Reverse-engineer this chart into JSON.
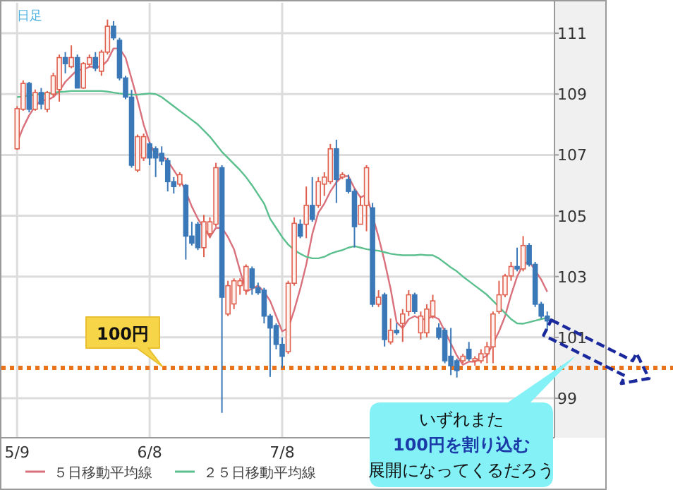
{
  "chart_data": {
    "type": "candlestick",
    "title": "日足",
    "categories": [
      "5/9",
      null,
      null,
      null,
      null,
      null,
      null,
      null,
      null,
      null,
      null,
      null,
      null,
      null,
      null,
      null,
      null,
      null,
      null,
      null,
      null,
      null,
      "6/8",
      null,
      null,
      null,
      null,
      null,
      null,
      null,
      null,
      null,
      null,
      null,
      null,
      null,
      null,
      null,
      null,
      null,
      null,
      null,
      null,
      null,
      "7/8",
      null,
      null,
      null,
      null,
      null,
      null,
      null,
      null,
      null,
      null,
      null,
      null,
      null,
      null,
      null,
      null,
      null,
      null,
      null,
      null,
      null,
      null,
      null,
      null,
      null,
      null,
      null,
      null,
      null,
      null,
      null,
      null,
      null,
      null,
      null,
      null,
      null,
      null,
      null,
      null,
      null,
      null,
      null,
      null
    ],
    "ohlc": [
      [
        107.2,
        108.6,
        107.17,
        108.52
      ],
      [
        108.5,
        109.45,
        108.45,
        109.35
      ],
      [
        109.35,
        109.4,
        108.4,
        108.5
      ],
      [
        108.5,
        109.15,
        108.45,
        109.05
      ],
      [
        109.05,
        109.2,
        108.5,
        108.67
      ],
      [
        108.5,
        109.1,
        108.4,
        109.05
      ],
      [
        109.0,
        109.7,
        108.9,
        109.6
      ],
      [
        109.15,
        110.3,
        108.75,
        110.2
      ],
      [
        110.2,
        110.38,
        109.68,
        110.0
      ],
      [
        109.9,
        110.6,
        109.85,
        110.2
      ],
      [
        110.2,
        110.3,
        109.2,
        109.2
      ],
      [
        109.2,
        110.05,
        109.17,
        110.0
      ],
      [
        109.98,
        110.3,
        109.9,
        110.2
      ],
      [
        110.2,
        110.38,
        109.75,
        109.85
      ],
      [
        109.75,
        110.45,
        109.6,
        110.38
      ],
      [
        110.38,
        111.45,
        110.3,
        111.23
      ],
      [
        111.23,
        111.4,
        110.77,
        110.85
      ],
      [
        110.77,
        110.85,
        109.45,
        109.53
      ],
      [
        109.53,
        109.6,
        108.83,
        108.9
      ],
      [
        108.9,
        109.14,
        106.58,
        106.66
      ],
      [
        106.5,
        107.67,
        106.43,
        107.6
      ],
      [
        106.9,
        107.7,
        106.8,
        107.6
      ],
      [
        107.36,
        107.43,
        106.66,
        106.9
      ],
      [
        107.2,
        107.28,
        106.27,
        106.9
      ],
      [
        107.05,
        107.28,
        106.66,
        106.8
      ],
      [
        106.81,
        106.9,
        105.8,
        106.12
      ],
      [
        106.12,
        106.27,
        105.73,
        105.96
      ],
      [
        106.04,
        106.43,
        105.96,
        106.35
      ],
      [
        106.0,
        106.04,
        103.56,
        104.33
      ],
      [
        104.33,
        104.8,
        104.02,
        104.1
      ],
      [
        104.72,
        104.8,
        103.87,
        103.95
      ],
      [
        103.95,
        105.03,
        103.64,
        104.8
      ],
      [
        104.41,
        104.95,
        104.26,
        104.8
      ],
      [
        104.72,
        106.74,
        104.64,
        106.58
      ],
      [
        106.58,
        106.66,
        98.52,
        102.32
      ],
      [
        101.77,
        102.86,
        101.7,
        102.7
      ],
      [
        102.1,
        102.94,
        101.93,
        102.86
      ],
      [
        102.7,
        102.94,
        102.4,
        102.86
      ],
      [
        102.55,
        103.4,
        102.4,
        103.33
      ],
      [
        103.25,
        103.33,
        102.4,
        102.63
      ],
      [
        102.63,
        102.8,
        102.4,
        102.47
      ],
      [
        102.55,
        102.63,
        101.46,
        101.7
      ],
      [
        101.7,
        101.77,
        99.7,
        101.31
      ],
      [
        101.39,
        101.46,
        100.61,
        100.77
      ],
      [
        100.77,
        101.0,
        99.99,
        100.38
      ],
      [
        100.53,
        102.86,
        100.46,
        102.78
      ],
      [
        102.78,
        104.95,
        102.7,
        104.75
      ],
      [
        104.72,
        104.88,
        104.26,
        104.33
      ],
      [
        104.72,
        105.96,
        104.26,
        105.34
      ],
      [
        105.34,
        106.27,
        104.8,
        104.88
      ],
      [
        105.34,
        106.27,
        105.26,
        106.12
      ],
      [
        106.04,
        106.43,
        105.65,
        106.27
      ],
      [
        106.12,
        107.36,
        106.04,
        107.2
      ],
      [
        107.2,
        107.5,
        105.42,
        106.19
      ],
      [
        106.27,
        106.43,
        106.2,
        106.35
      ],
      [
        106.19,
        106.35,
        105.73,
        105.8
      ],
      [
        105.8,
        105.88,
        103.95,
        104.64
      ],
      [
        104.72,
        105.65,
        104.72,
        105.34
      ],
      [
        105.34,
        106.66,
        104.49,
        106.58
      ],
      [
        105.26,
        105.42,
        102.0,
        102.09
      ],
      [
        102.09,
        102.55,
        102.0,
        102.32
      ],
      [
        102.4,
        102.47,
        100.7,
        100.93
      ],
      [
        100.85,
        101.62,
        100.77,
        101.23
      ],
      [
        101.23,
        101.46,
        101.08,
        101.15
      ],
      [
        101.46,
        101.93,
        100.85,
        101.77
      ],
      [
        101.85,
        102.55,
        101.7,
        102.4
      ],
      [
        102.4,
        102.47,
        101.77,
        101.85
      ],
      [
        101.15,
        101.85,
        100.93,
        101.7
      ],
      [
        101.15,
        102.09,
        101.0,
        101.93
      ],
      [
        101.7,
        102.4,
        101.62,
        102.2
      ],
      [
        101.31,
        101.46,
        100.93,
        101.0
      ],
      [
        101.23,
        101.31,
        100.15,
        100.23
      ],
      [
        100.38,
        101.31,
        99.76,
        100.07
      ],
      [
        100.23,
        100.3,
        99.68,
        99.91
      ],
      [
        100.23,
        100.46,
        100.15,
        100.38
      ],
      [
        100.61,
        100.85,
        100.23,
        100.3
      ],
      [
        100.23,
        100.38,
        100.07,
        100.3
      ],
      [
        100.23,
        100.61,
        100.15,
        100.46
      ],
      [
        100.46,
        100.85,
        100.15,
        100.69
      ],
      [
        100.69,
        101.85,
        100.15,
        101.77
      ],
      [
        101.85,
        102.86,
        101.77,
        102.4
      ],
      [
        102.4,
        103.09,
        102.32,
        103.02
      ],
      [
        103.02,
        103.48,
        102.86,
        103.33
      ],
      [
        103.33,
        103.95,
        103.17,
        103.25
      ],
      [
        103.25,
        104.33,
        103.17,
        104.02
      ],
      [
        104.02,
        104.1,
        103.33,
        103.4
      ],
      [
        103.4,
        103.48,
        102.0,
        102.09
      ],
      [
        102.09,
        102.17,
        101.62,
        101.7
      ],
      [
        101.7,
        101.85,
        101.23,
        101.54
      ]
    ],
    "colors": [
      "#e0604f",
      "#e0604f",
      "#3a78b8",
      "#e0604f",
      "#3a78b8",
      "#e0604f",
      "#e0604f",
      "#e0604f",
      "#3a78b8",
      "#e0604f",
      "#3a78b8",
      "#e0604f",
      "#e0604f",
      "#3a78b8",
      "#e0604f",
      "#e0604f",
      "#3a78b8",
      "#3a78b8",
      "#3a78b8",
      "#3a78b8",
      "#e0604f",
      "#e0604f",
      "#3a78b8",
      "#3a78b8",
      "#3a78b8",
      "#3a78b8",
      "#3a78b8",
      "#e0604f",
      "#3a78b8",
      "#3a78b8",
      "#3a78b8",
      "#e0604f",
      "#e0604f",
      "#e0604f",
      "#3a78b8",
      "#e0604f",
      "#e0604f",
      "#e0604f",
      "#e0604f",
      "#3a78b8",
      "#3a78b8",
      "#3a78b8",
      "#3a78b8",
      "#3a78b8",
      "#3a78b8",
      "#e0604f",
      "#e0604f",
      "#3a78b8",
      "#e0604f",
      "#3a78b8",
      "#e0604f",
      "#e0604f",
      "#e0604f",
      "#3a78b8",
      "#e0604f",
      "#3a78b8",
      "#3a78b8",
      "#e0604f",
      "#e0604f",
      "#3a78b8",
      "#e0604f",
      "#3a78b8",
      "#e0604f",
      "#3a78b8",
      "#e0604f",
      "#e0604f",
      "#3a78b8",
      "#e0604f",
      "#e0604f",
      "#e0604f",
      "#3a78b8",
      "#3a78b8",
      "#3a78b8",
      "#3a78b8",
      "#e0604f",
      "#3a78b8",
      "#e0604f",
      "#e0604f",
      "#e0604f",
      "#e0604f",
      "#e0604f",
      "#e0604f",
      "#e0604f",
      "#3a78b8",
      "#e0604f",
      "#3a78b8",
      "#3a78b8",
      "#3a78b8",
      "#3a78b8"
    ],
    "series": [
      {
        "name": "５日移動平均線",
        "type": "line",
        "color": "#d9707c",
        "values": [
          107.4,
          107.9,
          108.3,
          108.6,
          108.8,
          108.8,
          108.9,
          109.1,
          109.4,
          109.6,
          109.8,
          109.8,
          109.9,
          109.9,
          109.9,
          110.1,
          110.5,
          110.5,
          110.2,
          109.5,
          108.8,
          108.0,
          107.4,
          107.0,
          107.0,
          106.8,
          106.5,
          106.2,
          105.8,
          105.3,
          104.9,
          104.6,
          104.3,
          104.6,
          104.6,
          104.3,
          103.9,
          103.2,
          102.5,
          102.6,
          102.7,
          102.5,
          102.2,
          101.7,
          101.2,
          101.3,
          101.9,
          102.6,
          103.4,
          104.4,
          105.1,
          105.4,
          105.8,
          106.1,
          106.3,
          106.3,
          105.9,
          105.6,
          105.7,
          105.0,
          104.3,
          103.5,
          102.6,
          101.5,
          101.3,
          101.6,
          101.7,
          101.6,
          101.6,
          101.7,
          101.6,
          101.2,
          100.8,
          100.4,
          100.1,
          100.2,
          100.2,
          100.3,
          100.4,
          100.8,
          101.2,
          101.7,
          102.4,
          103.0,
          103.4,
          103.5,
          103.2,
          102.9,
          102.5
        ]
      },
      {
        "name": "２５日移動平均線",
        "type": "line",
        "color": "#5bbf8e",
        "values": [
          108.9,
          108.92,
          108.95,
          108.98,
          109.0,
          109.02,
          109.05,
          109.07,
          109.08,
          109.1,
          109.1,
          109.1,
          109.1,
          109.1,
          109.1,
          109.08,
          109.05,
          109.02,
          109.0,
          108.98,
          108.98,
          109.0,
          109.02,
          109.0,
          108.9,
          108.75,
          108.6,
          108.45,
          108.3,
          108.15,
          108.0,
          107.8,
          107.6,
          107.35,
          107.1,
          106.9,
          106.7,
          106.5,
          106.27,
          106.0,
          105.7,
          105.4,
          104.9,
          104.6,
          104.3,
          104.05,
          103.87,
          103.75,
          103.65,
          103.6,
          103.6,
          103.65,
          103.75,
          103.82,
          103.87,
          103.95,
          104.0,
          103.95,
          103.9,
          103.87,
          103.85,
          103.8,
          103.75,
          103.72,
          103.7,
          103.7,
          103.7,
          103.72,
          103.7,
          103.7,
          103.6,
          103.45,
          103.3,
          103.17,
          103.0,
          102.85,
          102.7,
          102.55,
          102.4,
          102.2,
          102.0,
          101.8,
          101.6,
          101.46,
          101.45,
          101.5,
          101.55,
          101.6,
          101.65
        ]
      }
    ],
    "ylim": [
      97.7,
      112
    ],
    "yticks": [
      99,
      101,
      103,
      105,
      107,
      109,
      111
    ],
    "grid": true,
    "legend": "bottom",
    "ref_lines": [
      {
        "axis": "y",
        "value": 100,
        "label": "100円",
        "color": "#e8731a",
        "line_style": "dotted"
      }
    ],
    "annotations": [
      "いずれまた",
      "100円を割り込む",
      "展開になってくるだろう"
    ]
  }
}
